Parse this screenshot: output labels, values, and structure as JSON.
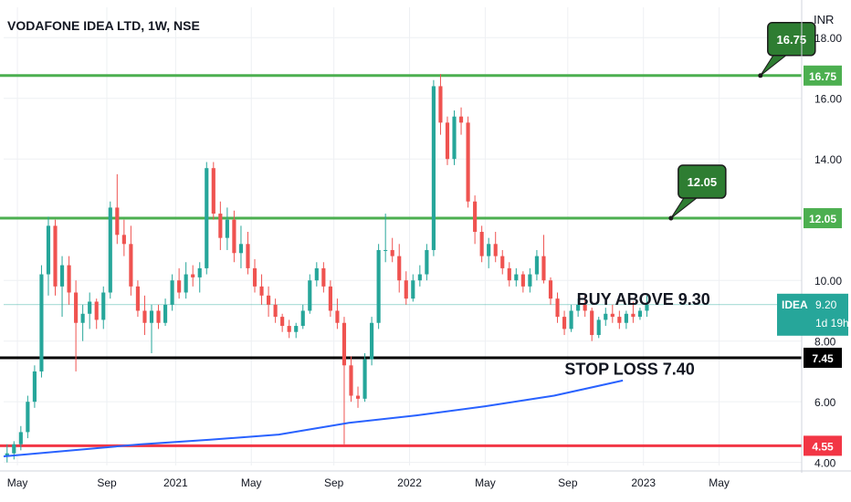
{
  "title": "VODAFONE IDEA LTD, 1W, NSE",
  "currency": "INR",
  "colors": {
    "up": "#26a69a",
    "down": "#ef5350",
    "hline_green": "#4caf50",
    "hline_red": "#f23645",
    "hline_black": "#000000",
    "ma_line": "#2962ff",
    "grid": "#eef0f3",
    "callout_fill": "#2e7d32"
  },
  "chart_data": {
    "type": "candlestick",
    "ylim": [
      3.9,
      19.0
    ],
    "yticks": [
      4.0,
      6.0,
      8.0,
      10.0,
      14.0,
      16.0,
      18.0
    ],
    "ytick_labels": [
      "4.00",
      "6.00",
      "8.00",
      "10.00",
      "14.00",
      "16.00",
      "18.00"
    ],
    "xlim": [
      0,
      116
    ],
    "xticks": [
      {
        "x": 2,
        "label": "May"
      },
      {
        "x": 15,
        "label": "Sep"
      },
      {
        "x": 25,
        "label": "2021"
      },
      {
        "x": 36,
        "label": "May"
      },
      {
        "x": 48,
        "label": "Sep"
      },
      {
        "x": 59,
        "label": "2022"
      },
      {
        "x": 70,
        "label": "May"
      },
      {
        "x": 82,
        "label": "Sep"
      },
      {
        "x": 93,
        "label": "2023"
      },
      {
        "x": 104,
        "label": "May"
      }
    ],
    "candles": [
      [
        4.2,
        4.6,
        4.0,
        4.3
      ],
      [
        4.3,
        4.7,
        4.1,
        4.6
      ],
      [
        4.6,
        5.2,
        4.4,
        5.0
      ],
      [
        5.0,
        6.2,
        4.8,
        6.0
      ],
      [
        6.0,
        7.2,
        5.8,
        7.0
      ],
      [
        7.0,
        10.5,
        6.8,
        10.2
      ],
      [
        10.2,
        12.1,
        9.5,
        11.8
      ],
      [
        11.8,
        12.0,
        9.5,
        9.8
      ],
      [
        9.8,
        10.8,
        8.8,
        10.5
      ],
      [
        10.5,
        10.8,
        9.2,
        9.6
      ],
      [
        9.6,
        10.0,
        7.0,
        8.6
      ],
      [
        8.6,
        9.2,
        8.0,
        8.9
      ],
      [
        8.9,
        9.6,
        8.4,
        9.3
      ],
      [
        9.3,
        9.4,
        8.4,
        8.7
      ],
      [
        8.7,
        9.8,
        8.4,
        9.6
      ],
      [
        9.6,
        12.6,
        9.4,
        12.4
      ],
      [
        12.4,
        13.5,
        11.2,
        11.5
      ],
      [
        11.5,
        12.0,
        10.8,
        11.2
      ],
      [
        11.2,
        11.8,
        9.5,
        9.8
      ],
      [
        9.8,
        10.0,
        8.8,
        9.0
      ],
      [
        9.0,
        9.5,
        8.2,
        8.6
      ],
      [
        8.6,
        9.2,
        7.6,
        9.0
      ],
      [
        9.0,
        9.2,
        8.4,
        8.6
      ],
      [
        8.6,
        9.4,
        8.5,
        9.2
      ],
      [
        9.2,
        10.2,
        9.0,
        10.0
      ],
      [
        10.0,
        10.4,
        9.4,
        9.6
      ],
      [
        9.6,
        10.6,
        9.4,
        10.2
      ],
      [
        10.2,
        10.5,
        9.8,
        10.1
      ],
      [
        10.1,
        10.6,
        9.6,
        10.4
      ],
      [
        10.4,
        13.9,
        10.2,
        13.7
      ],
      [
        13.7,
        13.9,
        12.0,
        12.2
      ],
      [
        12.2,
        12.6,
        11.0,
        11.4
      ],
      [
        11.4,
        12.4,
        11.0,
        12.0
      ],
      [
        12.0,
        12.3,
        10.6,
        10.9
      ],
      [
        10.9,
        11.8,
        10.4,
        11.2
      ],
      [
        11.2,
        11.6,
        10.2,
        10.4
      ],
      [
        10.4,
        10.7,
        9.6,
        9.8
      ],
      [
        9.8,
        10.2,
        9.2,
        9.5
      ],
      [
        9.5,
        9.8,
        8.8,
        9.2
      ],
      [
        9.2,
        9.4,
        8.6,
        8.8
      ],
      [
        8.8,
        8.9,
        8.3,
        8.5
      ],
      [
        8.5,
        8.7,
        8.1,
        8.3
      ],
      [
        8.3,
        8.6,
        8.1,
        8.5
      ],
      [
        8.5,
        9.2,
        8.4,
        9.0
      ],
      [
        9.0,
        10.2,
        8.9,
        10.0
      ],
      [
        10.0,
        10.6,
        9.8,
        10.4
      ],
      [
        10.4,
        10.6,
        9.6,
        9.8
      ],
      [
        9.8,
        10.0,
        8.8,
        9.0
      ],
      [
        9.0,
        9.4,
        8.4,
        8.6
      ],
      [
        8.6,
        8.8,
        4.6,
        7.2
      ],
      [
        7.2,
        7.5,
        6.0,
        6.2
      ],
      [
        6.2,
        6.5,
        5.8,
        6.1
      ],
      [
        6.1,
        7.6,
        6.0,
        7.4
      ],
      [
        7.4,
        8.8,
        7.2,
        8.6
      ],
      [
        8.6,
        11.2,
        8.4,
        11.0
      ],
      [
        11.0,
        12.2,
        10.6,
        11.0
      ],
      [
        11.0,
        11.4,
        10.6,
        10.8
      ],
      [
        10.8,
        11.2,
        9.6,
        10.0
      ],
      [
        10.0,
        10.3,
        9.2,
        9.4
      ],
      [
        9.4,
        10.2,
        9.3,
        10.0
      ],
      [
        10.0,
        10.5,
        9.8,
        10.2
      ],
      [
        10.2,
        11.2,
        10.0,
        11.0
      ],
      [
        11.0,
        16.6,
        10.8,
        16.4
      ],
      [
        16.4,
        16.8,
        14.8,
        15.2
      ],
      [
        15.2,
        15.4,
        13.8,
        14.0
      ],
      [
        14.0,
        15.6,
        13.8,
        15.4
      ],
      [
        15.4,
        15.7,
        14.8,
        15.2
      ],
      [
        15.2,
        15.4,
        12.4,
        12.6
      ],
      [
        12.6,
        12.8,
        11.2,
        11.6
      ],
      [
        11.6,
        11.8,
        10.6,
        10.8
      ],
      [
        10.8,
        11.4,
        10.4,
        11.2
      ],
      [
        11.2,
        11.6,
        10.6,
        10.8
      ],
      [
        10.8,
        11.0,
        10.2,
        10.4
      ],
      [
        10.4,
        10.6,
        9.8,
        10.0
      ],
      [
        10.0,
        10.4,
        9.8,
        10.2
      ],
      [
        10.2,
        10.3,
        9.6,
        9.8
      ],
      [
        9.8,
        10.4,
        9.6,
        10.2
      ],
      [
        10.2,
        11.0,
        10.0,
        10.8
      ],
      [
        10.8,
        11.5,
        9.9,
        10.0
      ],
      [
        10.0,
        10.1,
        9.2,
        9.4
      ],
      [
        9.4,
        9.6,
        8.6,
        8.8
      ],
      [
        8.8,
        9.0,
        8.2,
        8.4
      ],
      [
        8.4,
        9.2,
        8.3,
        9.0
      ],
      [
        9.0,
        9.4,
        8.8,
        9.2
      ],
      [
        9.2,
        9.5,
        8.8,
        9.0
      ],
      [
        9.0,
        9.1,
        8.0,
        8.2
      ],
      [
        8.2,
        8.8,
        8.1,
        8.7
      ],
      [
        8.7,
        9.1,
        8.5,
        8.9
      ],
      [
        8.9,
        9.2,
        8.6,
        8.8
      ],
      [
        8.8,
        9.0,
        8.4,
        8.6
      ],
      [
        8.6,
        9.0,
        8.4,
        8.9
      ],
      [
        8.9,
        9.3,
        8.6,
        8.8
      ],
      [
        8.8,
        9.1,
        8.7,
        9.0
      ],
      [
        9.0,
        9.5,
        8.8,
        9.2
      ]
    ],
    "ma_line": [
      [
        0,
        4.2
      ],
      [
        10,
        4.4
      ],
      [
        20,
        4.6
      ],
      [
        30,
        4.75
      ],
      [
        40,
        4.92
      ],
      [
        50,
        5.3
      ],
      [
        60,
        5.55
      ],
      [
        70,
        5.85
      ],
      [
        80,
        6.2
      ],
      [
        90,
        6.7
      ]
    ],
    "hlines": [
      {
        "value": 16.75,
        "label": "16.75",
        "color": "#4caf50"
      },
      {
        "value": 12.05,
        "label": "12.05",
        "color": "#4caf50"
      },
      {
        "value": 7.45,
        "label": "7.45",
        "color": "#000000"
      },
      {
        "value": 4.55,
        "label": "4.55",
        "color": "#f23645"
      }
    ],
    "callouts": [
      {
        "label": "16.75",
        "anchor": [
          110,
          16.75
        ]
      },
      {
        "label": "12.05",
        "anchor": [
          97,
          12.05
        ]
      }
    ],
    "annotations": [
      {
        "text": "BUY ABOVE 9.30",
        "x": 93,
        "y": 9.2
      },
      {
        "text": "STOP LOSS 7.40",
        "x": 91,
        "y": 6.9
      }
    ],
    "last_price": {
      "symbol": "IDEA",
      "price": "9.20",
      "countdown": "1d 19h",
      "value": 9.2
    }
  }
}
